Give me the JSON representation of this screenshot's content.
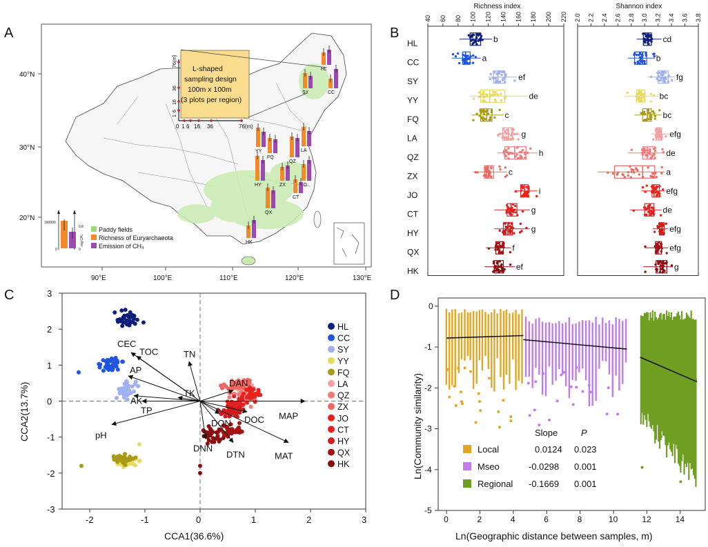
{
  "panel_letters": [
    "A",
    "B",
    "C",
    "D"
  ],
  "panel_a": {
    "map_x_ticks": [
      "90°E",
      "100°E",
      "110°E",
      "120°E",
      "130°E"
    ],
    "map_y_ticks": [
      "40°N",
      "30°N",
      "20°N"
    ],
    "inset": {
      "title": "L-shaped sampling design 100m x 100m (3 plots per region)",
      "title_lines": [
        "L-shaped",
        "sampling design",
        "100m x 100m",
        "(3 plots per region)"
      ],
      "y_unit": "76(m)",
      "y_ticks": [
        "36",
        "16",
        "6",
        "1",
        "0"
      ],
      "x_ticks": [
        "0",
        "1",
        "6",
        "16",
        "36",
        "76(m)"
      ]
    },
    "site_labels": [
      "HL",
      "CC",
      "SY",
      "YY",
      "FQ",
      "LA",
      "QZ",
      "ZX",
      "JO",
      "CT",
      "HY",
      "QX",
      "HK"
    ],
    "legend": [
      "Paddy fields",
      "Richness of Euryarchaeota",
      "Emission of CH₄"
    ],
    "scale_bar": {
      "left_value": "160000",
      "left_zero": "0",
      "right_top": "0.8",
      "right_zero": "0",
      "right_unit": "mg CH₄"
    },
    "colors": {
      "paddy": "#9ed97a",
      "richness": "#f08a2a",
      "emission": "#9a4ab0"
    }
  },
  "chart_data": [
    {
      "panel": "B-left",
      "type": "box",
      "title": "Richness index",
      "axis_ticks": [
        "40",
        "60",
        "80",
        "100",
        "120",
        "140",
        "160",
        "180",
        "200",
        "220"
      ],
      "xlim": [
        40,
        220
      ],
      "sites": [
        "HL",
        "CC",
        "SY",
        "YY",
        "FQ",
        "LA",
        "QZ",
        "ZX",
        "JO",
        "CT",
        "HY",
        "QX",
        "HK"
      ],
      "q1": [
        96,
        86,
        127,
        110,
        110,
        139,
        142,
        115,
        163,
        145,
        140,
        130,
        128
      ],
      "median": [
        104,
        90,
        133,
        122,
        118,
        147,
        155,
        120,
        168,
        150,
        146,
        135,
        133
      ],
      "q3": [
        110,
        96,
        142,
        142,
        125,
        152,
        170,
        127,
        173,
        158,
        152,
        140,
        140
      ],
      "wmin": [
        82,
        72,
        120,
        95,
        98,
        132,
        132,
        100,
        155,
        128,
        128,
        117,
        115
      ],
      "wmax": [
        125,
        110,
        158,
        172,
        140,
        162,
        185,
        145,
        185,
        175,
        175,
        150,
        155
      ],
      "letters": [
        "b",
        "a",
        "ef",
        "de",
        "c",
        "g",
        "h",
        "c",
        "i",
        "g",
        "g",
        "f",
        "ef"
      ],
      "colors": [
        "#0d1f7a",
        "#1f54e0",
        "#9fb1f2",
        "#e6db5c",
        "#a89a14",
        "#f4a0a0",
        "#f17a78",
        "#ee6660",
        "#e8231c",
        "#df2222",
        "#cf1b1b",
        "#a31313",
        "#880d10"
      ]
    },
    {
      "panel": "B-right",
      "type": "box",
      "title": "Shannon index",
      "axis_ticks": [
        "2.0",
        "2.2",
        "2.4",
        "2.6",
        "2.8",
        "3.0",
        "3.2",
        "3.4",
        "3.6",
        "3.8"
      ],
      "xlim": [
        2.0,
        3.8
      ],
      "sites": [
        "HL",
        "CC",
        "SY",
        "YY",
        "FQ",
        "LA",
        "QZ",
        "ZX",
        "JO",
        "CT",
        "HY",
        "QX",
        "HK"
      ],
      "q1": [
        2.98,
        2.85,
        3.2,
        2.88,
        2.97,
        3.17,
        2.97,
        2.55,
        3.11,
        3.0,
        3.22,
        3.16,
        3.17
      ],
      "median": [
        3.05,
        2.97,
        3.27,
        2.95,
        3.04,
        3.21,
        3.04,
        2.97,
        3.14,
        3.07,
        3.26,
        3.2,
        3.23
      ],
      "q3": [
        3.1,
        3.03,
        3.35,
        3.0,
        3.1,
        3.25,
        3.15,
        3.15,
        3.22,
        3.14,
        3.29,
        3.25,
        3.33
      ],
      "wmin": [
        2.88,
        2.75,
        3.05,
        2.7,
        2.85,
        3.1,
        2.75,
        2.3,
        2.95,
        2.78,
        3.12,
        3.0,
        2.98
      ],
      "wmax": [
        3.25,
        3.15,
        3.45,
        3.2,
        3.25,
        3.35,
        3.3,
        3.3,
        3.3,
        3.25,
        3.35,
        3.35,
        3.42
      ],
      "letters": [
        "cd",
        "b",
        "fg",
        "bc",
        "bc",
        "efg",
        "de",
        "a",
        "efg",
        "de",
        "efg",
        "efg",
        "g"
      ],
      "colors": [
        "#0d1f7a",
        "#1f54e0",
        "#9fb1f2",
        "#e6db5c",
        "#a89a14",
        "#f4a0a0",
        "#f17a78",
        "#ee6660",
        "#e8231c",
        "#df2222",
        "#cf1b1b",
        "#a31313",
        "#880d10"
      ]
    },
    {
      "panel": "C",
      "type": "scatter",
      "xlabel": "CCA1(36.6%)",
      "ylabel": "CCA2(13.7%)",
      "xlim": [
        -2.5,
        3
      ],
      "ylim": [
        -3,
        3
      ],
      "x_ticks": [
        "-2",
        "-1",
        "0",
        "1",
        "2",
        "3"
      ],
      "y_ticks": [
        "3",
        "2",
        "1",
        "0",
        "-1",
        "-2",
        "-3"
      ],
      "groups": [
        {
          "name": "HL",
          "cx": -1.3,
          "cy": 2.3,
          "sx": 0.22,
          "sy": 0.17,
          "color": "#0d1f7a"
        },
        {
          "name": "CC",
          "cx": -1.65,
          "cy": 1.05,
          "sx": 0.22,
          "sy": 0.2,
          "color": "#1f54e0"
        },
        {
          "name": "SY",
          "cx": -1.35,
          "cy": 0.3,
          "sx": 0.16,
          "sy": 0.25,
          "color": "#9fb1f2"
        },
        {
          "name": "YY",
          "cx": -1.3,
          "cy": -1.72,
          "sx": 0.22,
          "sy": 0.13,
          "color": "#e6db5c"
        },
        {
          "name": "FQ",
          "cx": -1.4,
          "cy": -1.6,
          "sx": 0.2,
          "sy": 0.13,
          "color": "#a89a14"
        },
        {
          "name": "LA",
          "cx": 0.75,
          "cy": 0.35,
          "sx": 0.2,
          "sy": 0.18,
          "color": "#f4a0a0"
        },
        {
          "name": "QZ",
          "cx": 0.8,
          "cy": 0.1,
          "sx": 0.25,
          "sy": 0.22,
          "color": "#f17a78"
        },
        {
          "name": "ZX",
          "cx": 0.7,
          "cy": 0.45,
          "sx": 0.28,
          "sy": 0.22,
          "color": "#ee6660"
        },
        {
          "name": "JO",
          "cx": 0.95,
          "cy": 0.2,
          "sx": 0.2,
          "sy": 0.18,
          "color": "#e8231c"
        },
        {
          "name": "CT",
          "cx": 0.6,
          "cy": -0.1,
          "sx": 0.18,
          "sy": 0.2,
          "color": "#df2222"
        },
        {
          "name": "HY",
          "cx": 0.55,
          "cy": -0.3,
          "sx": 0.2,
          "sy": 0.18,
          "color": "#cf1b1b"
        },
        {
          "name": "QX",
          "cx": 0.55,
          "cy": -0.8,
          "sx": 0.2,
          "sy": 0.18,
          "color": "#a31313"
        },
        {
          "name": "HK",
          "cx": 0.2,
          "cy": -0.95,
          "sx": 0.2,
          "sy": 0.22,
          "color": "#880d10"
        }
      ],
      "vectors": [
        {
          "name": "CEC",
          "x": -1.25,
          "y": 1.35
        },
        {
          "name": "TOC",
          "x": -1.15,
          "y": 1.25
        },
        {
          "name": "TN",
          "x": -0.2,
          "y": 1.1
        },
        {
          "name": "AP",
          "x": -1.3,
          "y": 0.7
        },
        {
          "name": "AK",
          "x": -1.2,
          "y": 0.15
        },
        {
          "name": "TK",
          "x": -0.4,
          "y": 0.1
        },
        {
          "name": "TP",
          "x": -1.05,
          "y": 0.0
        },
        {
          "name": "pH",
          "x": -1.6,
          "y": -0.65
        },
        {
          "name": "DAN",
          "x": 0.6,
          "y": 0.3
        },
        {
          "name": "DON",
          "x": 0.35,
          "y": -0.35
        },
        {
          "name": "DOC",
          "x": 0.85,
          "y": -0.3
        },
        {
          "name": "MAP",
          "x": 1.9,
          "y": 0.0
        },
        {
          "name": "MAT",
          "x": 1.6,
          "y": -1.15
        },
        {
          "name": "DTN",
          "x": 0.6,
          "y": -1.15
        },
        {
          "name": "DNN",
          "x": 0.1,
          "y": -1.05
        }
      ]
    },
    {
      "panel": "D",
      "type": "scatter",
      "xlabel": "Ln(Geographic distance between samples, m)",
      "ylabel": "Ln(Community similarity)",
      "xlim": [
        -0.5,
        15.5
      ],
      "ylim": [
        -5,
        0.2
      ],
      "x_ticks": [
        "0",
        "2",
        "4",
        "6",
        "8",
        "10",
        "12",
        "14"
      ],
      "y_ticks": [
        "0",
        "-1",
        "-2",
        "-3",
        "-4",
        "-5"
      ],
      "legend_header": [
        "Slope",
        "P"
      ],
      "scales": [
        {
          "name": "Local",
          "slope": "0.0124",
          "p": "0.023",
          "color": "#e3a623",
          "xmin": 0.0,
          "xmax": 4.6,
          "ystart": -0.78,
          "yend": -0.72
        },
        {
          "name": "Mseo",
          "slope": "-0.0298",
          "p": "0.001",
          "color": "#c07ce8",
          "xmin": 4.6,
          "xmax": 10.8,
          "ystart": -0.82,
          "yend": -1.05
        },
        {
          "name": "Regional",
          "slope": "-0.1669",
          "p": "0.001",
          "color": "#6f9f22",
          "xmin": 11.6,
          "xmax": 15.0,
          "ystart": -1.25,
          "yend": -1.85
        }
      ]
    }
  ]
}
